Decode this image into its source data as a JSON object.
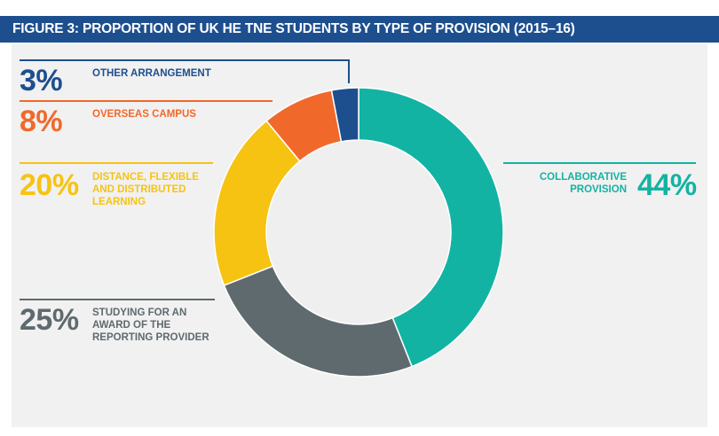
{
  "figure": {
    "title": "FIGURE 3: PROPORTION OF UK HE TNE STUDENTS BY TYPE OF PROVISION (2015–16)"
  },
  "colors": {
    "header_bg": "#1d4f8f",
    "panel_bg": "#f1f1f1",
    "center_fill": "#efefef"
  },
  "chart_data": {
    "type": "pie",
    "style": "donut",
    "title": "FIGURE 3: PROPORTION OF UK HE TNE STUDENTS BY TYPE OF PROVISION (2015–16)",
    "unit": "%",
    "slices": [
      {
        "key": "collaborative",
        "label": "COLLABORATIVE\nPROVISION",
        "value": 44,
        "display": "44%",
        "color": "#13b3a4"
      },
      {
        "key": "studying",
        "label": "STUDYING FOR AN\nAWARD OF THE\nREPORTING PROVIDER",
        "value": 25,
        "display": "25%",
        "color": "#5f6a6e"
      },
      {
        "key": "distance",
        "label": "DISTANCE, FLEXIBLE\nAND DISTRIBUTED\nLEARNING",
        "value": 20,
        "display": "20%",
        "color": "#f6c313"
      },
      {
        "key": "overseas",
        "label": "OVERSEAS CAMPUS",
        "value": 8,
        "display": "8%",
        "color": "#f1692a"
      },
      {
        "key": "other",
        "label": "OTHER ARRANGEMENT",
        "value": 3,
        "display": "3%",
        "color": "#1d4f8f"
      }
    ]
  }
}
